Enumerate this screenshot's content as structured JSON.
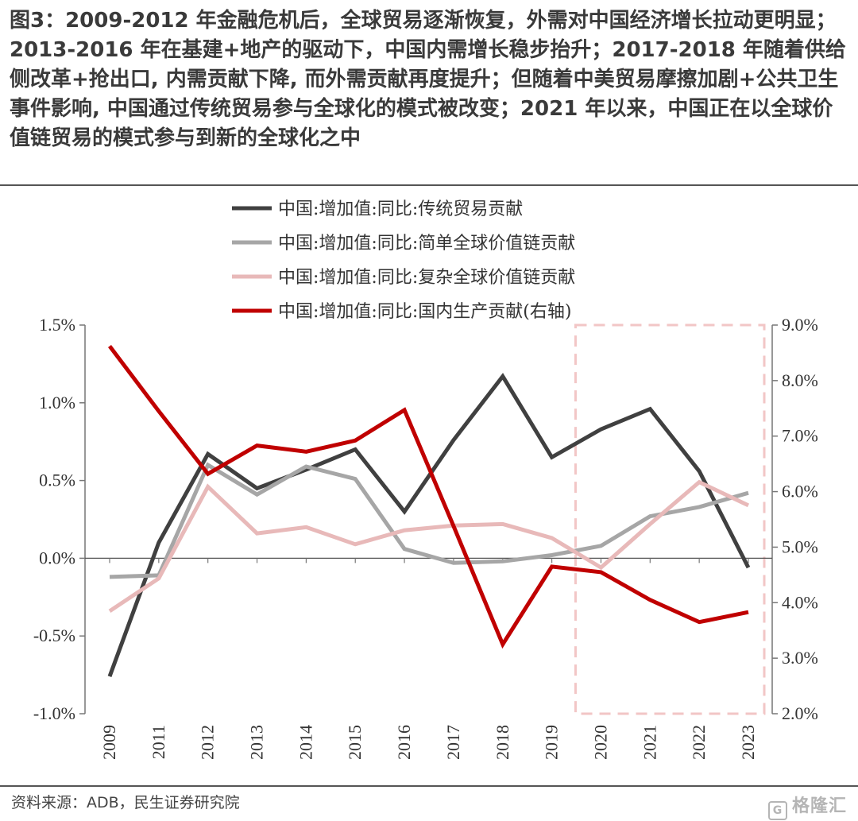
{
  "title": "图3：2009-2012 年金融危机后，全球贸易逐渐恢复，外需对中国经济增长拉动更明显；2013-2016  年在基建+地产的驱动下，中国内需增长稳步抬升；2017-2018 年随着供给侧改革+抢出口, 内需贡献下降, 而外需贡献再度提升；但随着中美贸易摩擦加剧+公共卫生事件影响, 中国通过传统贸易参与全球化的模式被改变；2021 年以来，中国正在以全球价值链贸易的模式参与到新的全球化之中",
  "source": "资料来源：ADB，民生证券研究院",
  "watermark": "格隆汇",
  "watermark_icon": "G",
  "colors": {
    "traditional": "#404040",
    "simple_gvc": "#a6a6a6",
    "complex_gvc": "#e8b9b9",
    "domestic": "#c00000",
    "highlight_box": "#f2c6c6",
    "axis": "#777777"
  },
  "chart_data": {
    "type": "line",
    "categories": [
      "2009",
      "2011",
      "2012",
      "2013",
      "2014",
      "2015",
      "2016",
      "2017",
      "2018",
      "2019",
      "2020",
      "2021",
      "2022",
      "2023"
    ],
    "y_left": {
      "ticks": [
        "1.5%",
        "1.0%",
        "0.5%",
        "0.0%",
        "-0.5%",
        "-1.0%"
      ],
      "range": [
        -1.0,
        1.5
      ]
    },
    "y_right": {
      "ticks": [
        "9.0%",
        "8.0%",
        "7.0%",
        "6.0%",
        "5.0%",
        "4.0%",
        "3.0%",
        "2.0%"
      ],
      "range": [
        2.0,
        9.0
      ]
    },
    "highlight": {
      "from": "2020",
      "to": "2023"
    },
    "legend_position": "top-center",
    "series": [
      {
        "name": "中国:增加值:同比:传统贸易贡献",
        "axis": "left",
        "color_key": "traditional",
        "values": [
          -0.76,
          0.1,
          0.67,
          0.45,
          0.57,
          0.7,
          0.3,
          0.76,
          1.17,
          0.65,
          0.83,
          0.96,
          0.56,
          -0.06
        ]
      },
      {
        "name": "中国:增加值:同比:简单全球价值链贡献",
        "axis": "left",
        "color_key": "simple_gvc",
        "values": [
          -0.12,
          -0.11,
          0.6,
          0.41,
          0.59,
          0.51,
          0.06,
          -0.03,
          -0.02,
          0.02,
          0.08,
          0.27,
          0.33,
          0.42
        ]
      },
      {
        "name": "中国:增加值:同比:复杂全球价值链贡献",
        "axis": "left",
        "color_key": "complex_gvc",
        "values": [
          -0.34,
          -0.13,
          0.46,
          0.16,
          0.2,
          0.09,
          0.18,
          0.21,
          0.22,
          0.13,
          -0.06,
          0.22,
          0.49,
          0.34
        ]
      },
      {
        "name": "中国:增加值:同比:国内生产贡献(右轴)",
        "axis": "right",
        "color_key": "domestic",
        "values": [
          8.62,
          7.45,
          6.32,
          6.83,
          6.72,
          6.92,
          7.47,
          5.38,
          3.25,
          4.65,
          4.55,
          4.05,
          3.65,
          3.83
        ]
      }
    ]
  }
}
